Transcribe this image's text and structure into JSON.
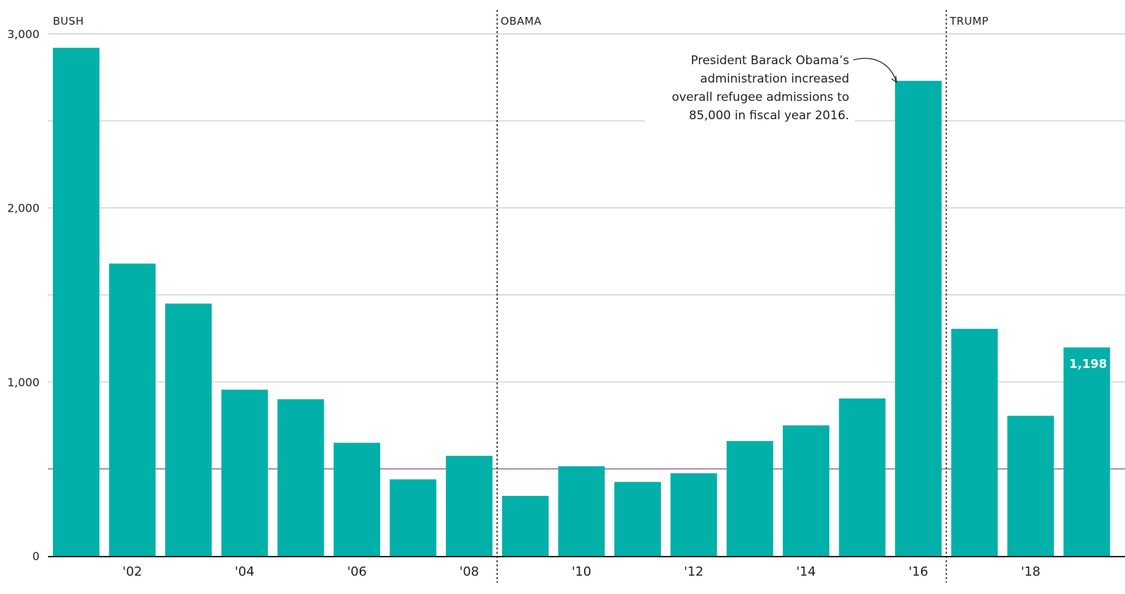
{
  "chart_data": {
    "type": "bar",
    "title": "",
    "xlabel": "",
    "ylabel": "",
    "ylim": [
      0,
      3000
    ],
    "y_ticks": [
      0,
      1000,
      2000,
      3000
    ],
    "y_tick_labels": [
      "0",
      "1,000",
      "2,000",
      "3,000"
    ],
    "grid": true,
    "years": [
      2001,
      2002,
      2003,
      2004,
      2005,
      2006,
      2007,
      2008,
      2009,
      2010,
      2011,
      2012,
      2013,
      2014,
      2015,
      2016,
      2017,
      2018,
      2019
    ],
    "values": [
      2920,
      1680,
      1450,
      955,
      900,
      650,
      440,
      575,
      345,
      515,
      425,
      475,
      660,
      750,
      905,
      2730,
      1305,
      805,
      1198
    ],
    "x_tick_labels": [
      {
        "year": 2002,
        "label": "'02"
      },
      {
        "year": 2004,
        "label": "'04"
      },
      {
        "year": 2006,
        "label": "'06"
      },
      {
        "year": 2008,
        "label": "'08"
      },
      {
        "year": 2010,
        "label": "'10"
      },
      {
        "year": 2012,
        "label": "'12"
      },
      {
        "year": 2014,
        "label": "'14"
      },
      {
        "year": 2016,
        "label": "'16"
      },
      {
        "year": 2018,
        "label": "'18"
      }
    ],
    "eras": [
      {
        "label": "BUSH",
        "start_year": 2001
      },
      {
        "label": "OBAMA",
        "start_year": 2009
      },
      {
        "label": "TRUMP",
        "start_year": 2017
      }
    ],
    "reference_line": {
      "value": 500,
      "color": "#9b6b8f"
    },
    "annotation": {
      "year": 2016,
      "lines": [
        "President Barack Obama’s",
        "administration increased",
        "overall refugee admissions to",
        "85,000 in fiscal year 2016."
      ]
    },
    "value_label": {
      "year": 2019,
      "text": "1,198"
    },
    "colors": {
      "bar": "#00b0a9",
      "grid": "#c8c8c8",
      "axis": "#222222",
      "text": "#222222"
    }
  }
}
